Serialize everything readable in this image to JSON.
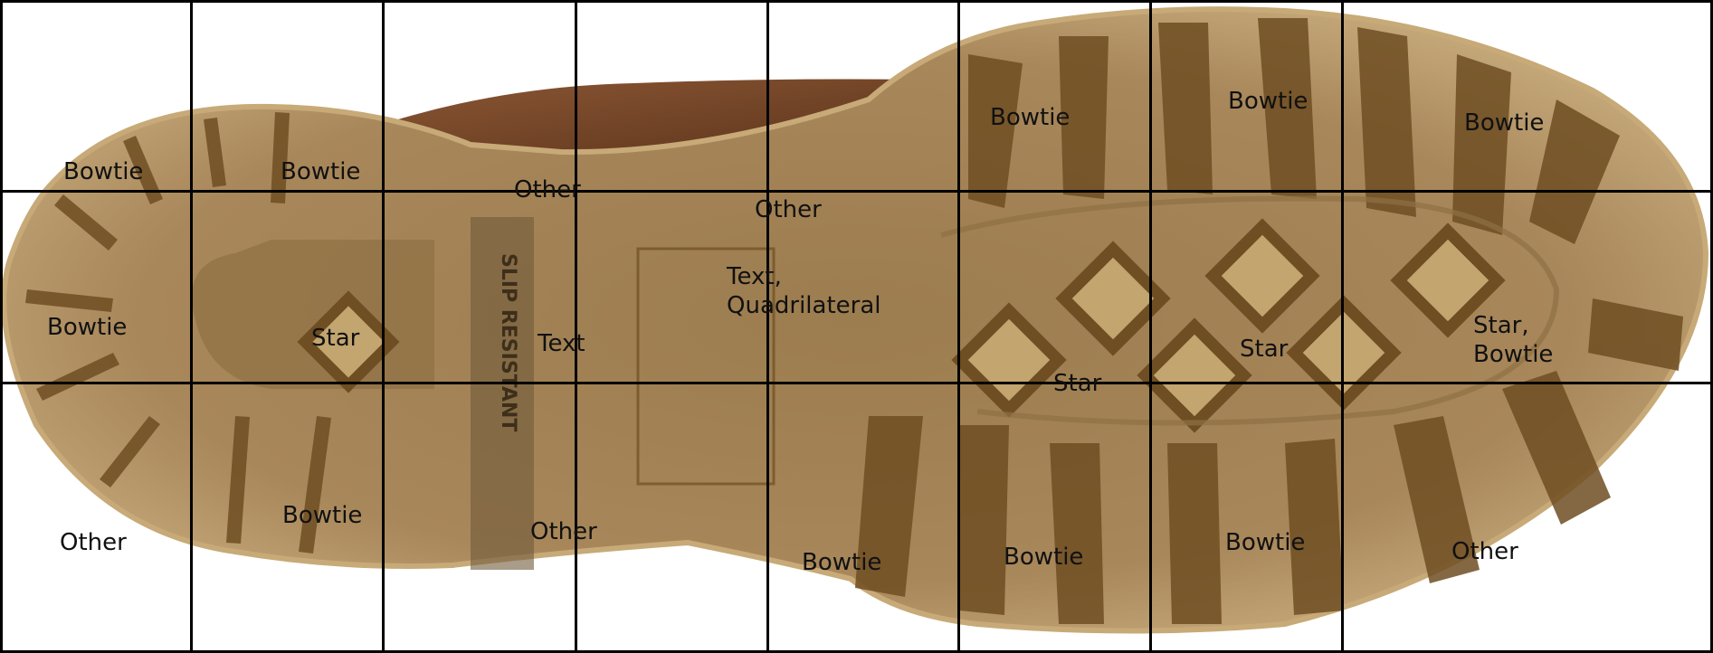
{
  "image": {
    "subject": "boot-sole",
    "colors": {
      "sole": "#a8875a",
      "sole_dark": "#6e4e22",
      "sole_light": "#d9c49a",
      "leather": "#7a4a2a"
    },
    "sole_text": [
      "SLIP RESISTANT"
    ]
  },
  "grid": {
    "columns": 7,
    "rows": 3,
    "cells": [
      {
        "row": 0,
        "col": 0,
        "labels": [
          "Bowtie"
        ]
      },
      {
        "row": 0,
        "col": 1,
        "labels": [
          "Bowtie"
        ]
      },
      {
        "row": 0,
        "col": 2,
        "labels": [
          "Other"
        ]
      },
      {
        "row": 0,
        "col": 3,
        "labels": [
          "Other"
        ]
      },
      {
        "row": 0,
        "col": 4,
        "labels": [
          "Bowtie"
        ]
      },
      {
        "row": 0,
        "col": 5,
        "labels": [
          "Bowtie"
        ]
      },
      {
        "row": 0,
        "col": 6,
        "labels": [
          "Bowtie"
        ]
      },
      {
        "row": 1,
        "col": 0,
        "labels": [
          "Bowtie"
        ]
      },
      {
        "row": 1,
        "col": 1,
        "labels": [
          "Star"
        ]
      },
      {
        "row": 1,
        "col": 2,
        "labels": [
          "Text"
        ]
      },
      {
        "row": 1,
        "col": 3,
        "labels": [
          "Text,",
          "Quadrilateral"
        ]
      },
      {
        "row": 1,
        "col": 4,
        "labels": [
          "Star"
        ]
      },
      {
        "row": 1,
        "col": 5,
        "labels": [
          "Star"
        ]
      },
      {
        "row": 1,
        "col": 6,
        "labels": [
          "Star,",
          "Bowtie"
        ]
      },
      {
        "row": 2,
        "col": 0,
        "labels": [
          "Other"
        ]
      },
      {
        "row": 2,
        "col": 1,
        "labels": [
          "Bowtie"
        ]
      },
      {
        "row": 2,
        "col": 2,
        "labels": [
          "Other"
        ]
      },
      {
        "row": 2,
        "col": 3,
        "labels": [
          "Bowtie"
        ]
      },
      {
        "row": 2,
        "col": 4,
        "labels": [
          "Bowtie"
        ]
      },
      {
        "row": 2,
        "col": 5,
        "labels": [
          "Bowtie"
        ]
      },
      {
        "row": 2,
        "col": 6,
        "labels": [
          "Other"
        ]
      }
    ]
  }
}
